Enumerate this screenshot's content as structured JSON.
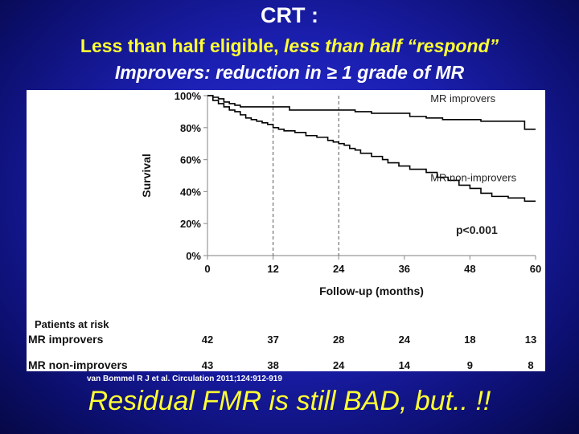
{
  "slide": {
    "title": "CRT :",
    "subtitle_plain": "Less than half eligible, ",
    "subtitle_italic": "less than half “respond”",
    "subtitle2": "Improvers: reduction in ≥ 1 grade of MR",
    "citation": "van Bommel R J et al. Circulation 2011;124:912-919",
    "tagline": "Residual FMR is still BAD, but.. !!"
  },
  "chart_data": {
    "type": "line",
    "title": "",
    "xlabel": "Follow-up (months)",
    "ylabel": "Survival",
    "xlim": [
      0,
      60
    ],
    "ylim": [
      0,
      100
    ],
    "x_ticks": [
      0,
      12,
      24,
      36,
      48,
      60
    ],
    "x_tick_labels": [
      "0",
      "12",
      "24",
      "36",
      "48",
      "60"
    ],
    "y_ticks": [
      0,
      20,
      40,
      60,
      80,
      100
    ],
    "y_tick_labels": [
      "0%",
      "20%",
      "40%",
      "60%",
      "80%",
      "100%"
    ],
    "reference_lines_x": [
      12,
      24
    ],
    "annotation": "p<0.001",
    "series": [
      {
        "name": "MR improvers",
        "color": "#000000",
        "points": [
          [
            0,
            100
          ],
          [
            1,
            99
          ],
          [
            2,
            98
          ],
          [
            3,
            96
          ],
          [
            4,
            95
          ],
          [
            5,
            94
          ],
          [
            6,
            93
          ],
          [
            8,
            93
          ],
          [
            10,
            93
          ],
          [
            12,
            93
          ],
          [
            14,
            93
          ],
          [
            15,
            91
          ],
          [
            16,
            91
          ],
          [
            26,
            91
          ],
          [
            27,
            90
          ],
          [
            29,
            90
          ],
          [
            30,
            89
          ],
          [
            36,
            89
          ],
          [
            37,
            87
          ],
          [
            39,
            87
          ],
          [
            40,
            86
          ],
          [
            42,
            86
          ],
          [
            43,
            85
          ],
          [
            49,
            85
          ],
          [
            50,
            84
          ],
          [
            57,
            84
          ],
          [
            58,
            79
          ],
          [
            60,
            79
          ]
        ]
      },
      {
        "name": "MR non-improvers",
        "color": "#000000",
        "points": [
          [
            0,
            100
          ],
          [
            1,
            97
          ],
          [
            2,
            95
          ],
          [
            3,
            93
          ],
          [
            4,
            91
          ],
          [
            5,
            90
          ],
          [
            6,
            88
          ],
          [
            7,
            86
          ],
          [
            8,
            85
          ],
          [
            9,
            84
          ],
          [
            10,
            83
          ],
          [
            11,
            82
          ],
          [
            12,
            80
          ],
          [
            13,
            79
          ],
          [
            14,
            78
          ],
          [
            16,
            77
          ],
          [
            18,
            75
          ],
          [
            20,
            74
          ],
          [
            22,
            72
          ],
          [
            23,
            71
          ],
          [
            24,
            70
          ],
          [
            25,
            69
          ],
          [
            26,
            67
          ],
          [
            27,
            66
          ],
          [
            28,
            64
          ],
          [
            30,
            62
          ],
          [
            32,
            60
          ],
          [
            33,
            58
          ],
          [
            35,
            56
          ],
          [
            37,
            54
          ],
          [
            40,
            52
          ],
          [
            42,
            49
          ],
          [
            44,
            47
          ],
          [
            46,
            44
          ],
          [
            48,
            42
          ],
          [
            50,
            39
          ],
          [
            52,
            37
          ],
          [
            55,
            36
          ],
          [
            58,
            34
          ],
          [
            60,
            34
          ]
        ]
      }
    ],
    "risk_table": {
      "header": "Patients at risk",
      "rows": [
        {
          "label": "MR improvers",
          "values": [
            42,
            37,
            28,
            24,
            18,
            13
          ]
        },
        {
          "label": "MR non-improvers",
          "values": [
            43,
            38,
            24,
            14,
            9,
            8
          ]
        }
      ]
    }
  }
}
